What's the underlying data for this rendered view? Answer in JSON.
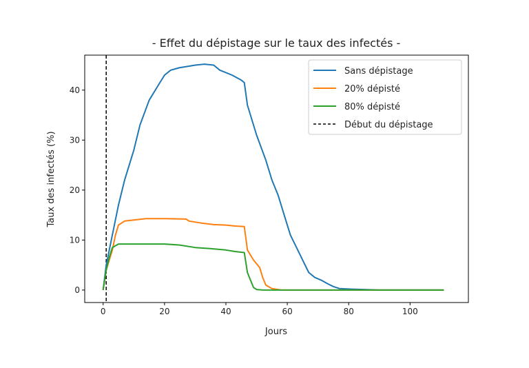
{
  "chart_data": {
    "type": "line",
    "title": "- Effet du dépistage sur le taux des infectés -",
    "xlabel": "Jours",
    "ylabel": "Taux des infectés (%)",
    "xlim": [
      -6,
      119
    ],
    "ylim": [
      -2.5,
      47
    ],
    "xticks": [
      0,
      20,
      40,
      60,
      80,
      100
    ],
    "yticks": [
      0,
      10,
      20,
      30,
      40
    ],
    "grid": false,
    "legend_position": "top-right",
    "series": [
      {
        "name": "Sans dépistage",
        "color": "#1f77b4",
        "style": "solid",
        "points": [
          [
            0,
            0
          ],
          [
            1,
            5
          ],
          [
            3,
            11
          ],
          [
            5,
            17
          ],
          [
            7,
            22
          ],
          [
            10,
            28
          ],
          [
            12,
            33
          ],
          [
            15,
            38
          ],
          [
            18,
            41
          ],
          [
            20,
            43
          ],
          [
            22,
            44
          ],
          [
            25,
            44.5
          ],
          [
            27,
            44.7
          ],
          [
            30,
            45
          ],
          [
            33,
            45.2
          ],
          [
            36,
            45
          ],
          [
            38,
            44
          ],
          [
            42,
            43
          ],
          [
            45,
            42
          ],
          [
            46,
            41.5
          ],
          [
            47,
            37
          ],
          [
            50,
            31
          ],
          [
            53,
            26
          ],
          [
            55,
            22
          ],
          [
            57,
            19
          ],
          [
            59,
            15
          ],
          [
            61,
            11
          ],
          [
            63,
            8.5
          ],
          [
            65,
            6
          ],
          [
            67,
            3.5
          ],
          [
            69,
            2.5
          ],
          [
            71,
            2
          ],
          [
            73,
            1.3
          ],
          [
            75,
            0.7
          ],
          [
            77,
            0.3
          ],
          [
            80,
            0.2
          ],
          [
            85,
            0.1
          ],
          [
            90,
            0
          ],
          [
            111,
            0
          ]
        ]
      },
      {
        "name": "20% dépisté",
        "color": "#ff7f0e",
        "style": "solid",
        "points": [
          [
            0,
            0
          ],
          [
            1,
            4
          ],
          [
            3,
            8
          ],
          [
            4,
            11
          ],
          [
            5,
            13
          ],
          [
            7,
            13.8
          ],
          [
            10,
            14
          ],
          [
            14,
            14.3
          ],
          [
            20,
            14.3
          ],
          [
            27,
            14.2
          ],
          [
            28,
            13.8
          ],
          [
            32,
            13.4
          ],
          [
            36,
            13.1
          ],
          [
            40,
            13
          ],
          [
            43,
            12.8
          ],
          [
            46,
            12.7
          ],
          [
            47,
            8
          ],
          [
            49,
            6
          ],
          [
            51,
            4.5
          ],
          [
            52,
            2.5
          ],
          [
            53,
            1
          ],
          [
            55,
            0.3
          ],
          [
            58,
            0
          ],
          [
            111,
            0
          ]
        ]
      },
      {
        "name": "80% dépisté",
        "color": "#2ca02c",
        "style": "solid",
        "points": [
          [
            0,
            0
          ],
          [
            1,
            4
          ],
          [
            2,
            6.5
          ],
          [
            3,
            8.5
          ],
          [
            5,
            9.2
          ],
          [
            10,
            9.2
          ],
          [
            20,
            9.2
          ],
          [
            25,
            9
          ],
          [
            30,
            8.5
          ],
          [
            35,
            8.3
          ],
          [
            40,
            8
          ],
          [
            43,
            7.7
          ],
          [
            46,
            7.5
          ],
          [
            47,
            3.5
          ],
          [
            48,
            2
          ],
          [
            49,
            0.5
          ],
          [
            50,
            0.1
          ],
          [
            52,
            0
          ],
          [
            111,
            0
          ]
        ]
      }
    ],
    "vline": {
      "name": "Début du dépistage",
      "x": 1,
      "color": "#000000",
      "style": "dashed"
    }
  }
}
